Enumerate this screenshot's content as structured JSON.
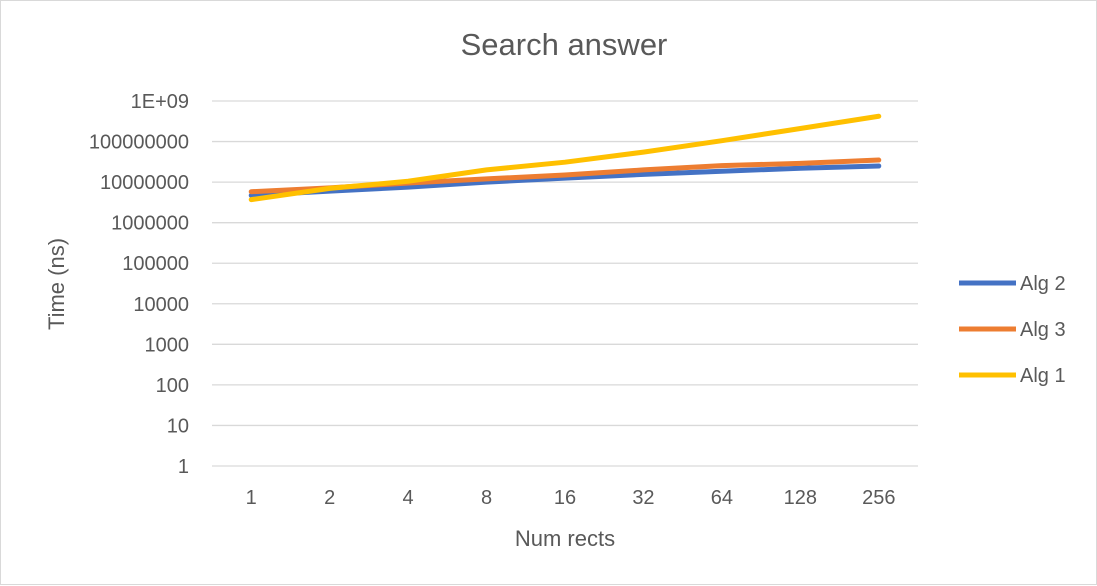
{
  "chart_data": {
    "type": "line",
    "title": "Search answer",
    "xlabel": "Num rects",
    "ylabel": "Time (ns)",
    "y_scale": "log",
    "ylim": [
      1,
      1000000000
    ],
    "grid": true,
    "legend_position": "right",
    "y_tick_labels": [
      "1",
      "10",
      "100",
      "1000",
      "10000",
      "100000",
      "1000000",
      "10000000",
      "100000000",
      "1E+09"
    ],
    "categories": [
      "1",
      "2",
      "4",
      "8",
      "16",
      "32",
      "64",
      "128",
      "256"
    ],
    "series": [
      {
        "name": "Alg 2",
        "color": "#4472C4",
        "values": [
          4700000,
          6000000,
          7500000,
          10000000,
          12500000,
          15500000,
          18500000,
          22000000,
          25000000
        ]
      },
      {
        "name": "Alg 3",
        "color": "#ED7D31",
        "values": [
          5800000,
          7200000,
          9500000,
          12000000,
          15000000,
          20000000,
          25500000,
          29000000,
          35000000
        ]
      },
      {
        "name": "Alg 1",
        "color": "#FFC000",
        "values": [
          3700000,
          7000000,
          10500000,
          20000000,
          31000000,
          55000000,
          105000000,
          210000000,
          420000000
        ]
      }
    ]
  }
}
